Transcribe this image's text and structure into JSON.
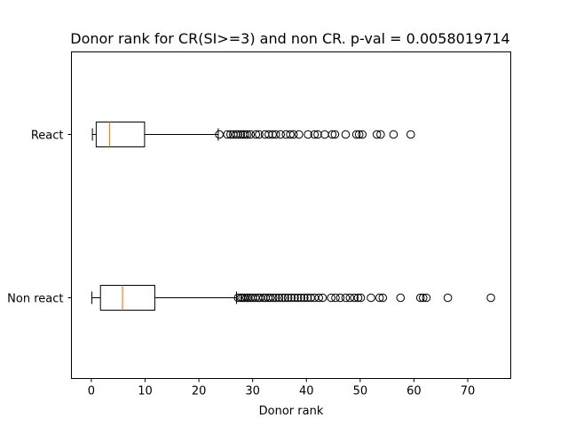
{
  "chart_data": {
    "type": "boxplot",
    "orientation": "horizontal",
    "title": "Donor rank for CR(SI>=3) and non CR. p-val = 0.0058019714",
    "xlabel": "Donor rank",
    "ylabel": "",
    "xlim": [
      -3.7,
      78
    ],
    "xticks": [
      0,
      10,
      20,
      30,
      40,
      50,
      60,
      70
    ],
    "grid": false,
    "colors": {
      "box": "#000000",
      "median": "#ff7f0e",
      "flier": "#000000"
    },
    "categories": [
      "Non react",
      "React"
    ],
    "boxes": [
      {
        "name": "Non react",
        "whisker_low": 0.1,
        "q1": 1.7,
        "median": 5.8,
        "q3": 11.8,
        "whisker_high": 27.0,
        "fliers": [
          27.3,
          27.8,
          28.1,
          28.5,
          28.9,
          29.2,
          29.6,
          30.0,
          30.5,
          31.0,
          31.4,
          32.0,
          32.4,
          32.9,
          33.3,
          33.8,
          34.3,
          34.9,
          35.5,
          36.0,
          36.6,
          37.2,
          37.8,
          38.4,
          39.0,
          39.6,
          40.2,
          40.8,
          41.5,
          42.3,
          43.0,
          44.6,
          45.4,
          46.3,
          47.3,
          48.1,
          48.9,
          49.6,
          50.1,
          52.0,
          53.6,
          54.2,
          57.5,
          61.2,
          61.7,
          62.3,
          66.3,
          74.3
        ]
      },
      {
        "name": "React",
        "whisker_low": 0.2,
        "q1": 0.9,
        "median": 3.4,
        "q3": 9.9,
        "whisker_high": 23.6,
        "fliers": [
          23.8,
          25.3,
          25.9,
          26.4,
          26.9,
          27.3,
          27.8,
          28.2,
          28.6,
          29.0,
          29.6,
          30.6,
          31.2,
          32.3,
          33.0,
          33.7,
          34.3,
          35.2,
          36.2,
          37.0,
          37.6,
          38.6,
          40.3,
          41.5,
          42.1,
          43.4,
          44.8,
          45.3,
          47.3,
          49.3,
          49.8,
          50.4,
          53.1,
          53.8,
          56.2,
          59.4
        ]
      }
    ]
  }
}
